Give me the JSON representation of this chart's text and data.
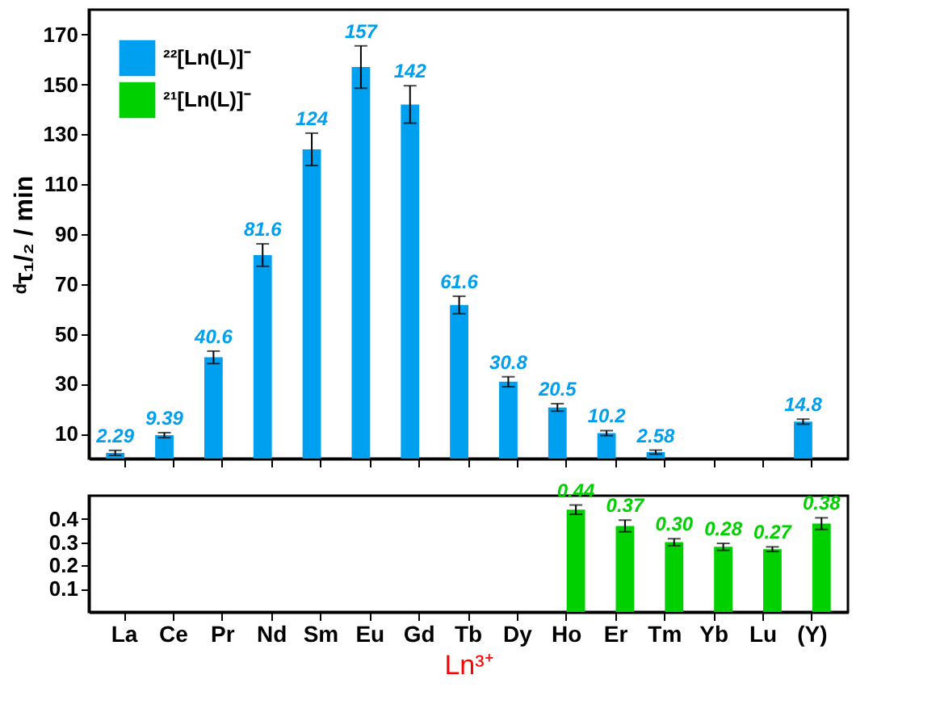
{
  "chart_data": [
    {
      "type": "bar",
      "ylabel": "ᵈτ₁/₂ / min",
      "categories": [
        null,
        null,
        null,
        null,
        null,
        null,
        null,
        null,
        null,
        null,
        null,
        null,
        null,
        null,
        null
      ],
      "ylim": [
        0,
        180
      ],
      "yticks": [
        10,
        30,
        50,
        70,
        90,
        110,
        130,
        150,
        170
      ],
      "tick_labels": "y",
      "legend": "top left",
      "data_labels": true,
      "grid": false,
      "series": [
        {
          "name": "²²[Ln(L)]⁻",
          "color": "#00a0f0",
          "values": [
            2.29,
            9.39,
            40.6,
            81.6,
            124,
            157,
            142,
            61.6,
            30.8,
            20.5,
            10.2,
            2.58,
            null,
            null,
            14.8
          ],
          "errors": [
            1,
            1,
            2.5,
            4.5,
            6.5,
            8.5,
            7.5,
            3.5,
            2,
            1.5,
            1,
            0.8,
            null,
            null,
            1
          ]
        },
        {
          "name": "²¹[Ln(L)]⁻",
          "color": "#00d000",
          "values": [
            null,
            null,
            null,
            null,
            null,
            null,
            null,
            null,
            null,
            null,
            null,
            null,
            null,
            null,
            null
          ]
        }
      ]
    },
    {
      "type": "bar",
      "xlabel": "Ln³⁺",
      "categories": [
        "La",
        "Ce",
        "Pr",
        "Nd",
        "Sm",
        "Eu",
        "Gd",
        "Tb",
        "Dy",
        "Ho",
        "Er",
        "Tm",
        "Yb",
        "Lu",
        "(Y)"
      ],
      "ylim": [
        0,
        0.5
      ],
      "yticks": [
        0.1,
        0.2,
        0.3,
        0.4
      ],
      "data_labels": true,
      "grid": false,
      "series": [
        {
          "color": "#00a0f0",
          "values": [
            null,
            null,
            null,
            null,
            null,
            null,
            null,
            null,
            null,
            null,
            null,
            null,
            null,
            null,
            null
          ]
        },
        {
          "color": "#00d000",
          "values": [
            null,
            null,
            null,
            null,
            null,
            null,
            null,
            null,
            null,
            0.44,
            0.37,
            0.3,
            0.28,
            0.27,
            0.38
          ],
          "errors": [
            null,
            null,
            null,
            null,
            null,
            null,
            null,
            null,
            null,
            0.02,
            0.025,
            0.015,
            0.015,
            0.01,
            0.025
          ],
          "value_labels": [
            null,
            null,
            null,
            null,
            null,
            null,
            null,
            null,
            null,
            "0.44",
            "0.37",
            "0.30",
            "0.28",
            "0.27",
            "0.38"
          ]
        }
      ]
    }
  ]
}
